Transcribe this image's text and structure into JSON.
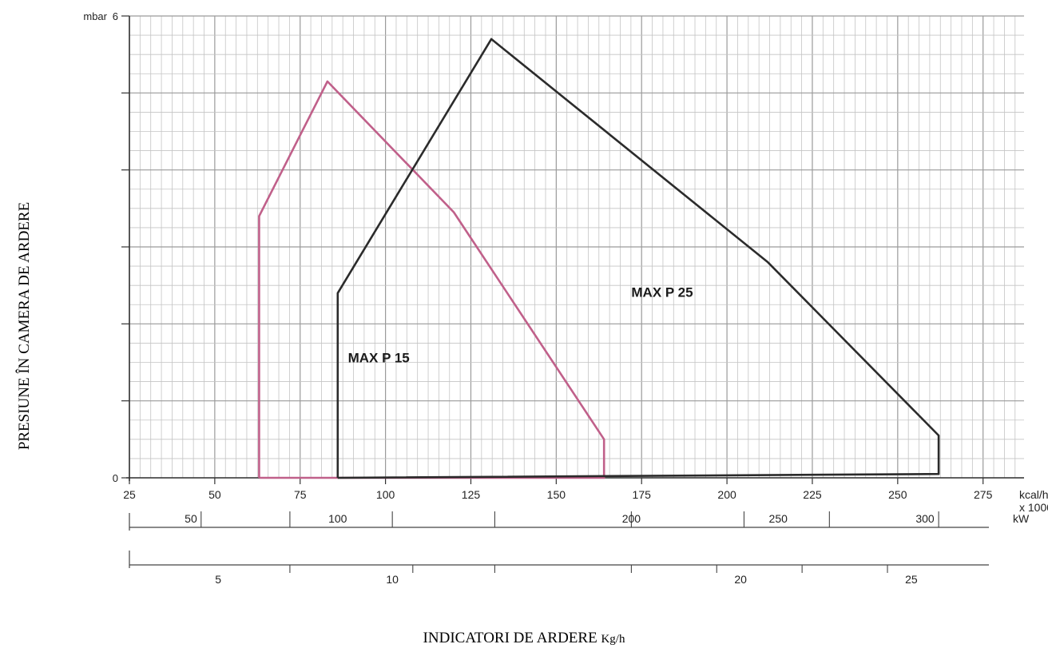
{
  "chart_data": {
    "type": "area",
    "title": "",
    "ylabel": "PRESIUNE ÎN CAMERA DE ARDERE",
    "xlabel": "INDICATORI DE ARDERE",
    "xlabel_unit": "Kg/h",
    "y_unit_label": "mbar",
    "ylim": [
      0,
      6
    ],
    "y_ticks": [
      0,
      1,
      2,
      3,
      4,
      5,
      6
    ],
    "y_tick_labels": [
      {
        "value": 0,
        "label": "0"
      },
      {
        "value": 6,
        "label": "6"
      }
    ],
    "xlim": [
      25,
      287
    ],
    "x_ticks": [
      25,
      50,
      75,
      100,
      125,
      150,
      175,
      200,
      225,
      250,
      275
    ],
    "x_unit_label": "kcal/h",
    "x_unit_label_2": "x 1000",
    "grid": true,
    "series": [
      {
        "name": "MAX P 15",
        "color": "#c0608a",
        "points": [
          [
            63,
            0
          ],
          [
            63,
            3.4
          ],
          [
            83,
            5.15
          ],
          [
            120,
            3.45
          ],
          [
            164,
            0.5
          ],
          [
            164,
            0
          ],
          [
            63,
            0
          ]
        ],
        "label_at": [
          89,
          1.5
        ]
      },
      {
        "name": "MAX P 25",
        "color": "#2b2b2b",
        "points": [
          [
            86,
            0
          ],
          [
            86,
            2.4
          ],
          [
            131,
            5.7
          ],
          [
            212,
            2.8
          ],
          [
            262,
            0.55
          ],
          [
            262,
            0.05
          ],
          [
            86,
            0
          ]
        ],
        "label_at": [
          172,
          2.35
        ]
      }
    ],
    "secondary_axes": [
      {
        "unit": "kW",
        "ticks_kcal": [
          46,
          72,
          102,
          132,
          172,
          205,
          230,
          262
        ],
        "labels": [
          {
            "label": "50",
            "at_kcal": 43
          },
          {
            "label": "100",
            "at_kcal": 86
          },
          {
            "label": "200",
            "at_kcal": 172
          },
          {
            "label": "250",
            "at_kcal": 215
          },
          {
            "label": "300",
            "at_kcal": 258
          }
        ]
      },
      {
        "unit": "",
        "ticks_kcal": [
          72,
          108,
          132,
          172,
          197,
          222,
          247
        ],
        "labels": [
          {
            "label": "5",
            "at_kcal": 51
          },
          {
            "label": "10",
            "at_kcal": 102
          },
          {
            "label": "20",
            "at_kcal": 204
          },
          {
            "label": "25",
            "at_kcal": 254
          }
        ]
      }
    ]
  }
}
